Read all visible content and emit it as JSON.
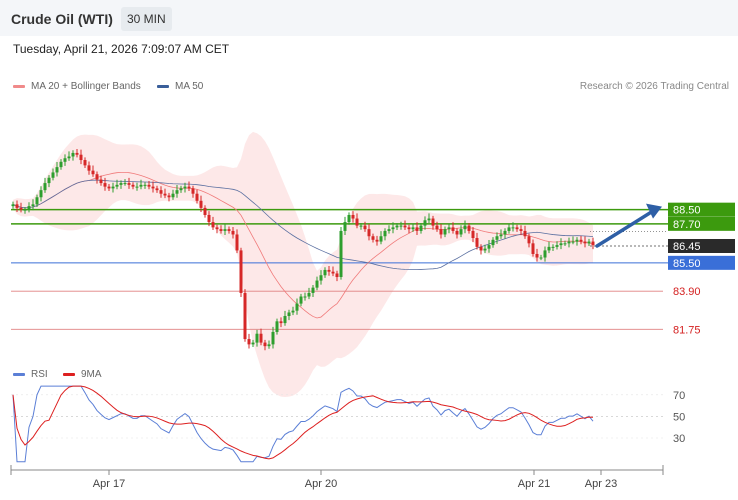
{
  "header": {
    "instrument": "Crude Oil (WTI)",
    "timeframe": "30 MIN",
    "datetime": "Tuesday, April 21, 2026 7:09:07 AM CET"
  },
  "legend_main": [
    {
      "label": "MA 20 + Bollinger Bands",
      "color": "#f08a8a"
    },
    {
      "label": "MA 50",
      "color": "#3a5f9a"
    }
  ],
  "copyright": "Research © 2026 Trading Central",
  "legend_rsi": [
    {
      "label": "RSI",
      "color": "#5b7fd6"
    },
    {
      "label": "9MA",
      "color": "#dd2020"
    }
  ],
  "colors": {
    "bull": "#2e9e2e",
    "bear": "#d62828",
    "accent": "#2e5fa6"
  },
  "chart_data": [
    {
      "type": "candlestick",
      "title": "Crude Oil (WTI)",
      "x_ticks": [
        "Apr 17",
        "Apr 20",
        "Apr 21",
        "Apr 23"
      ],
      "ylim": [
        80.3,
        94.8
      ],
      "price_levels": [
        {
          "label": "88.50",
          "value": 88.5,
          "kind": "resistance"
        },
        {
          "label": "87.70",
          "value": 87.7,
          "kind": "resistance"
        },
        {
          "label": "86.45",
          "value": 86.45,
          "kind": "last"
        },
        {
          "label": "85.50",
          "value": 85.5,
          "kind": "support"
        },
        {
          "label": "83.90",
          "value": 83.9,
          "kind": "support"
        },
        {
          "label": "81.75",
          "value": 81.75,
          "kind": "support"
        }
      ],
      "forecast": {
        "from": 86.45,
        "to": 88.5,
        "direction": "up"
      },
      "close_series": [
        88.8,
        88.6,
        88.5,
        88.5,
        88.7,
        88.8,
        89.2,
        89.6,
        90.0,
        90.3,
        90.6,
        90.9,
        91.2,
        91.4,
        91.5,
        91.7,
        91.6,
        91.3,
        91.0,
        90.7,
        90.5,
        90.2,
        90.0,
        89.8,
        89.7,
        89.8,
        89.9,
        90.0,
        90.0,
        89.9,
        89.8,
        89.8,
        89.9,
        89.9,
        89.8,
        89.7,
        89.6,
        89.4,
        89.3,
        89.2,
        89.4,
        89.6,
        89.7,
        89.8,
        89.7,
        89.4,
        89.0,
        88.6,
        88.2,
        87.8,
        87.5,
        87.4,
        87.3,
        87.4,
        87.3,
        87.1,
        86.2,
        83.8,
        81.2,
        80.9,
        81.0,
        81.5,
        81.0,
        80.8,
        80.9,
        81.6,
        82.2,
        82.1,
        82.5,
        82.7,
        82.8,
        83.2,
        83.6,
        83.6,
        83.8,
        84.1,
        84.5,
        84.8,
        85.1,
        85.0,
        84.9,
        84.7,
        87.3,
        87.8,
        88.2,
        88.0,
        87.6,
        87.6,
        87.4,
        87.0,
        86.8,
        86.7,
        87.0,
        87.3,
        87.4,
        87.5,
        87.6,
        87.6,
        87.5,
        87.4,
        87.5,
        87.3,
        87.6,
        87.9,
        88.0,
        87.6,
        87.4,
        87.1,
        87.4,
        87.5,
        87.3,
        87.1,
        87.4,
        87.6,
        87.3,
        86.9,
        86.4,
        86.2,
        86.3,
        86.5,
        86.8,
        87.0,
        87.1,
        87.3,
        87.5,
        87.5,
        87.4,
        87.3,
        87.0,
        86.6,
        86.0,
        85.8,
        85.8,
        86.2,
        86.4,
        86.4,
        86.5,
        86.6,
        86.6,
        86.7,
        86.7,
        86.8,
        86.7,
        86.6,
        86.7,
        86.5
      ],
      "overlays": [
        "MA 20 + Bollinger Bands",
        "MA 50"
      ]
    },
    {
      "type": "line",
      "title": "RSI",
      "ylim": [
        5,
        80
      ],
      "y_ticks": [
        70,
        50,
        30
      ],
      "series": [
        {
          "name": "RSI"
        },
        {
          "name": "9MA"
        }
      ]
    }
  ]
}
